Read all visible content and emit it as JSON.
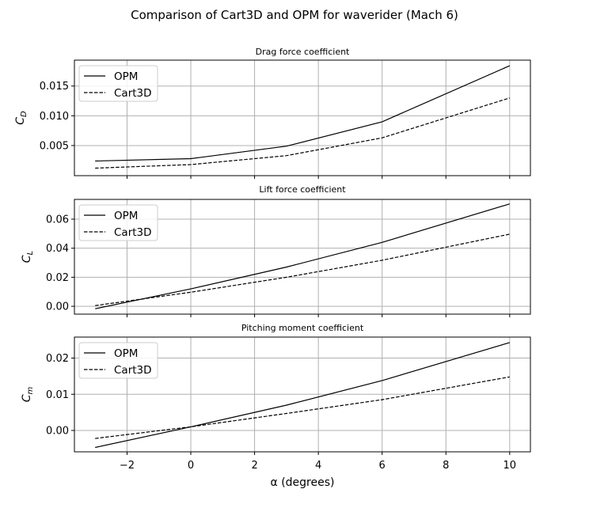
{
  "figure": {
    "title": "Comparison of Cart3D and OPM for waverider (Mach 6)",
    "xlabel": "α (degrees)"
  },
  "style": {
    "grid_color": "#b0b0b0",
    "line_color": "#000000",
    "legend_border": "#cccccc"
  },
  "chart_data": [
    {
      "type": "line",
      "title": "Drag force coefficient",
      "ylabel": "C_D",
      "xlabel": "",
      "grid": true,
      "legend": "upper-left",
      "xlim": [
        -3.65,
        10.65
      ],
      "ylim": [
        -6e-05,
        0.01935
      ],
      "yticks": [
        0.005,
        0.01,
        0.015
      ],
      "ytick_labels": [
        "0.005",
        "0.010",
        "0.015"
      ],
      "series": [
        {
          "name": "OPM",
          "style": "solid",
          "x": [
            -3,
            0,
            3,
            6,
            10
          ],
          "y": [
            0.0024,
            0.0028,
            0.0049,
            0.009,
            0.0184
          ]
        },
        {
          "name": "Cart3D",
          "style": "dashed",
          "x": [
            -3,
            0,
            3,
            6,
            10
          ],
          "y": [
            0.0012,
            0.0018,
            0.0033,
            0.0063,
            0.013
          ]
        }
      ]
    },
    {
      "type": "line",
      "title": "Lift force coefficient",
      "ylabel": "C_L",
      "xlabel": "",
      "grid": true,
      "legend": "upper-left",
      "xlim": [
        -3.65,
        10.65
      ],
      "ylim": [
        -0.0054,
        0.0736
      ],
      "yticks": [
        0.0,
        0.02,
        0.04,
        0.06
      ],
      "ytick_labels": [
        "0.00",
        "0.02",
        "0.04",
        "0.06"
      ],
      "series": [
        {
          "name": "OPM",
          "style": "solid",
          "x": [
            -3,
            0,
            3,
            6,
            10
          ],
          "y": [
            -0.0017,
            0.012,
            0.027,
            0.044,
            0.0705
          ]
        },
        {
          "name": "Cart3D",
          "style": "dashed",
          "x": [
            -3,
            0,
            3,
            6,
            10
          ],
          "y": [
            0.0005,
            0.0097,
            0.02,
            0.0317,
            0.0497
          ]
        }
      ]
    },
    {
      "type": "line",
      "title": "Pitching moment coefficient",
      "ylabel": "C_m",
      "xlabel": "α (degrees)",
      "grid": true,
      "legend": "upper-left",
      "xlim": [
        -3.65,
        10.65
      ],
      "ylim": [
        -0.0059,
        0.0258
      ],
      "yticks": [
        0.0,
        0.01,
        0.02
      ],
      "ytick_labels": [
        "0.00",
        "0.01",
        "0.02"
      ],
      "xticks": [
        -2,
        0,
        2,
        4,
        6,
        8,
        10
      ],
      "xtick_labels": [
        "−2",
        "0",
        "2",
        "4",
        "6",
        "8",
        "10"
      ],
      "series": [
        {
          "name": "OPM",
          "style": "solid",
          "x": [
            -3,
            0,
            3,
            6,
            10
          ],
          "y": [
            -0.0047,
            0.001,
            0.007,
            0.0138,
            0.0243
          ]
        },
        {
          "name": "Cart3D",
          "style": "dashed",
          "x": [
            -3,
            0,
            3,
            6,
            10
          ],
          "y": [
            -0.0022,
            0.001,
            0.0047,
            0.0085,
            0.0148
          ]
        }
      ]
    }
  ]
}
